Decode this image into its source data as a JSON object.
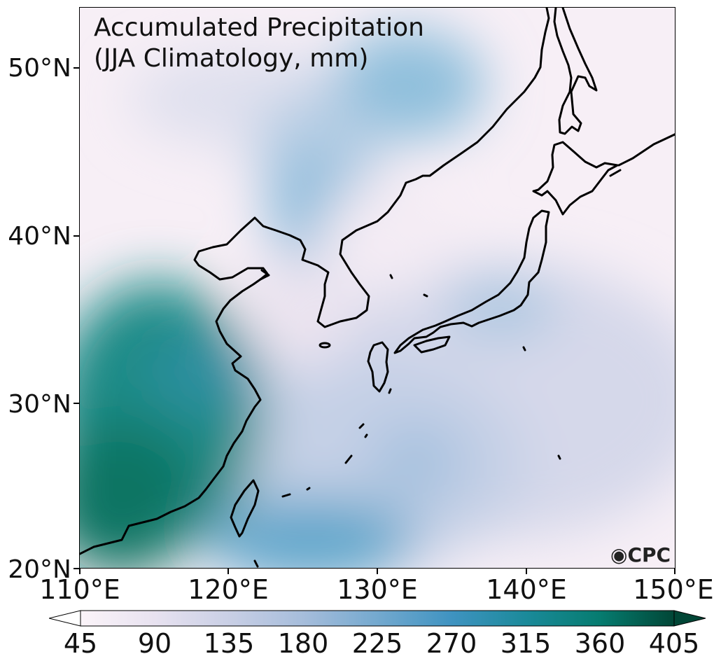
{
  "title": {
    "line1": "Accumulated Precipitation",
    "line2": "(JJA Climatology, mm)"
  },
  "lat_labels": [
    "50°N",
    "40°N",
    "30°N",
    "20°N"
  ],
  "lon_labels": [
    "110°E",
    "120°E",
    "130°E",
    "140°E",
    "150°E"
  ],
  "colorbar": {
    "ticks": [
      "45",
      "90",
      "135",
      "180",
      "225",
      "270",
      "315",
      "360",
      "405"
    ],
    "colors": [
      "#fbf4f9",
      "#e8e2f0",
      "#c9cfe5",
      "#a6bddb",
      "#74a9cf",
      "#3f93c1",
      "#1b8a9a",
      "#067c70",
      "#014636"
    ]
  },
  "logo": "CPC"
}
